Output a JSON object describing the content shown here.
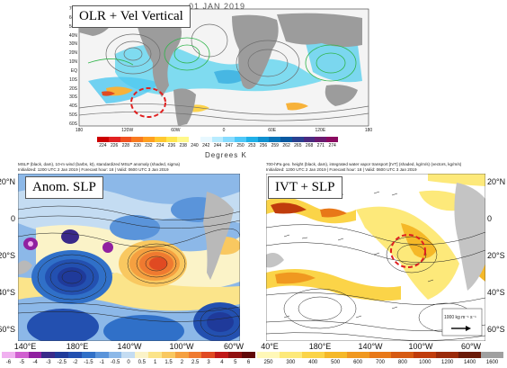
{
  "top_panel": {
    "title": "OLR + Vel Vertical",
    "date": "01 JAN 2019",
    "lat_labels": [
      "70N",
      "60N",
      "50N",
      "40N",
      "30N",
      "20N",
      "10N",
      "EQ",
      "10S",
      "20S",
      "30S",
      "40S",
      "50S",
      "60S"
    ],
    "lon_labels": [
      "180",
      "120W",
      "60W",
      "0",
      "60E",
      "120E",
      "180"
    ],
    "colorbar_values": [
      "224",
      "226",
      "228",
      "230",
      "232",
      "234",
      "236",
      "238",
      "240",
      "242",
      "244",
      "247",
      "250",
      "253",
      "256",
      "259",
      "262",
      "265",
      "268",
      "271",
      "274"
    ],
    "colorbar_colors": [
      "#cc0000",
      "#e22222",
      "#f05020",
      "#f87a20",
      "#ffa020",
      "#ffc830",
      "#ffe650",
      "#fff88a",
      "#ffffff",
      "#e8f8ff",
      "#b8ecff",
      "#88dcff",
      "#4fc8f8",
      "#20b0e8",
      "#1090d0",
      "#0a74b8",
      "#0a58a0",
      "#2a4090",
      "#4a2a80",
      "#6a1a70",
      "#8a0a60"
    ],
    "units": "Degrees K"
  },
  "left_panel": {
    "title": "Anom. SLP",
    "header_line1": "MSLP (black, dam), 10-m wind (barbs, kt), standardized MSLP anomaly (shaded, sigma)",
    "header_line2": "Initialized: 1200 UTC 2 Jan 2019 | Forecast hour: 18 | Valid: 0600 UTC 3 Jan 2019",
    "lat_labels": [
      "20°N",
      "0",
      "20°S",
      "40°S",
      "60°S"
    ],
    "lon_labels": [
      "140°E",
      "180°E",
      "140°W",
      "100°W",
      "60°W"
    ],
    "colorbar_values": [
      "-6",
      "-5",
      "-4",
      "-3",
      "-2.5",
      "-2",
      "-1.5",
      "-1",
      "-0.5",
      "0",
      "0.5",
      "1",
      "1.5",
      "2",
      "2.5",
      "3",
      "4",
      "5",
      "6"
    ],
    "colorbar_colors": [
      "#f0b0f0",
      "#d060d0",
      "#9020a0",
      "#3a2a8a",
      "#1f3a9a",
      "#2350b0",
      "#3070c8",
      "#5a94da",
      "#8cb8e8",
      "#c4dcf2",
      "#fbf3c8",
      "#fbe48a",
      "#f9c860",
      "#f5a040",
      "#ef7a30",
      "#e04a22",
      "#c01818",
      "#901010",
      "#600808"
    ]
  },
  "right_panel": {
    "title": "IVT + SLP",
    "header_line1": "700-hPa geo. height (black, dam), integrated water vapor transport [IVT] (shaded, kg/m/s) (vectors, kg/m/s)",
    "header_line2": "Initialized: 1200 UTC 2 Jan 2019 | Forecast hour: 18 | Valid: 0600 UTC 3 Jan 2019",
    "lat_labels": [
      "20°N",
      "0",
      "20°S",
      "40°S",
      "60°S"
    ],
    "lon_labels": [
      "40°E",
      "180°E",
      "140°W",
      "100°W",
      "60°W"
    ],
    "vector_scale": "1000 kg m⁻¹ s⁻¹",
    "colorbar_values": [
      "250",
      "300",
      "400",
      "500",
      "600",
      "700",
      "800",
      "1000",
      "1200",
      "1400",
      "1600"
    ],
    "colorbar_colors": [
      "#fff8b8",
      "#fde97a",
      "#fbd448",
      "#f5b828",
      "#f09820",
      "#e87818",
      "#d65a12",
      "#c03c0c",
      "#9a2a0a",
      "#6a1a08",
      "#a0a0a0"
    ]
  }
}
